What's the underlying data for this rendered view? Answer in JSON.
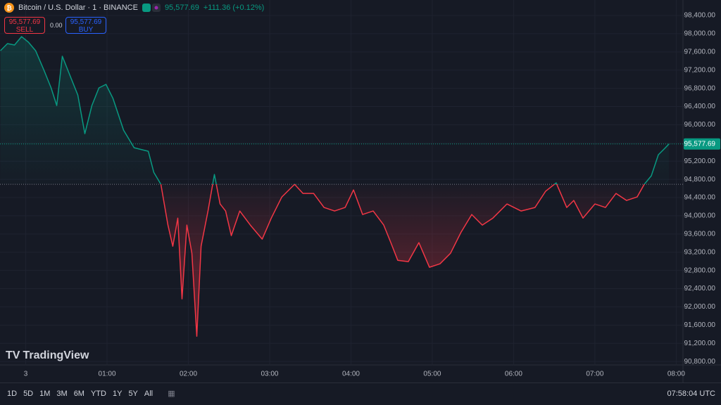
{
  "header": {
    "symbol": "Bitcoin / U.S. Dollar · 1 · BINANCE",
    "price": "95,577.69",
    "change": "+111.36 (+0.12%)",
    "sell_price": "95,577.69",
    "sell": "SELL",
    "spread": "0.00",
    "buy_price": "95,577.69",
    "buy": "BUY"
  },
  "logo": "TradingView",
  "toolbar": {
    "ranges": [
      "1D",
      "5D",
      "1M",
      "3M",
      "6M",
      "YTD",
      "1Y",
      "5Y",
      "All"
    ],
    "clock": "07:58:04 UTC"
  },
  "chart_data": {
    "type": "baseline",
    "x": [
      -18.7,
      -13.5,
      -8.3,
      -3.1,
      2,
      7.3,
      13.5,
      18.7,
      22.9,
      27,
      33.2,
      38.4,
      43.6,
      48.8,
      54,
      59.2,
      64.4,
      72.2,
      80,
      90.4,
      94.5,
      99.7,
      104.9,
      108.5,
      112.2,
      115.3,
      118.9,
      122.6,
      126.2,
      129.4,
      134.5,
      139.2,
      143.4,
      147.5,
      151.7,
      157.9,
      165.7,
      174.5,
      181.2,
      189,
      198.4,
      204.6,
      212.4,
      220.1,
      227.9,
      235.7,
      241.9,
      248.6,
      256.4,
      264.2,
      269.4,
      274.5,
      282.3,
      290.1,
      297.9,
      305.7,
      313.5,
      321.3,
      329.1,
      336.9,
      344.7,
      355.1,
      365.5,
      375.8,
      383.6,
      391.4,
      399.2,
      404.4,
      411.2,
      420,
      427.8,
      435.6,
      443.4,
      451.2,
      456.4,
      461.6,
      466.8,
      472,
      474.6
    ],
    "values": [
      97627,
      97782,
      97751,
      97936,
      97813,
      97627,
      97195,
      96809,
      96422,
      97504,
      97040,
      96654,
      95804,
      96422,
      96809,
      96886,
      96577,
      95881,
      95495,
      95418,
      94955,
      94692,
      93796,
      93332,
      93950,
      92174,
      93796,
      93178,
      91355,
      93332,
      94105,
      94908,
      94259,
      94105,
      93564,
      94105,
      93796,
      93487,
      93950,
      94414,
      94692,
      94491,
      94491,
      94182,
      94105,
      94182,
      94568,
      94028,
      94105,
      93796,
      93410,
      93023,
      92993,
      93410,
      92869,
      92946,
      93178,
      93642,
      94028,
      93796,
      93950,
      94259,
      94105,
      94182,
      94537,
      94723,
      94182,
      94337,
      93950,
      94259,
      94182,
      94491,
      94337,
      94414,
      94692,
      94877,
      95341,
      95495,
      95577.69
    ],
    "baseline": 94692,
    "up_color": "#089981",
    "down_color": "#f23645",
    "last_price": {
      "value": 95577.69,
      "label": "95,577.69"
    },
    "xlim": [
      -19,
      485
    ],
    "xticks": [
      {
        "value": 0,
        "label": "3"
      },
      {
        "value": 60,
        "label": "01:00"
      },
      {
        "value": 120,
        "label": "02:00"
      },
      {
        "value": 180,
        "label": "03:00"
      },
      {
        "value": 240,
        "label": "04:00"
      },
      {
        "value": 300,
        "label": "05:00"
      },
      {
        "value": 360,
        "label": "06:00"
      },
      {
        "value": 420,
        "label": "07:00"
      },
      {
        "value": 480,
        "label": "08:00"
      }
    ],
    "ylim": [
      90740,
      98740
    ],
    "yticks": [
      {
        "value": 90800,
        "label": "90,800.00"
      },
      {
        "value": 91200,
        "label": "91,200.00"
      },
      {
        "value": 91600,
        "label": "91,600.00"
      },
      {
        "value": 92000,
        "label": "92,000.00"
      },
      {
        "value": 92400,
        "label": "92,400.00"
      },
      {
        "value": 92800,
        "label": "92,800.00"
      },
      {
        "value": 93200,
        "label": "93,200.00"
      },
      {
        "value": 93600,
        "label": "93,600.00"
      },
      {
        "value": 94000,
        "label": "94,000.00"
      },
      {
        "value": 94400,
        "label": "94,400.00"
      },
      {
        "value": 94800,
        "label": "94,800.00"
      },
      {
        "value": 95200,
        "label": "95,200.00"
      },
      {
        "value": 95600,
        "label": "95,600.00"
      },
      {
        "value": 96000,
        "label": "96,000.00"
      },
      {
        "value": 96400,
        "label": "96,400.00"
      },
      {
        "value": 96800,
        "label": "96,800.00"
      },
      {
        "value": 97200,
        "label": "97,200.00"
      },
      {
        "value": 97600,
        "label": "97,600.00"
      },
      {
        "value": 98000,
        "label": "98,000.00"
      },
      {
        "value": 98400,
        "label": "98,400.00"
      }
    ],
    "grid": true
  }
}
